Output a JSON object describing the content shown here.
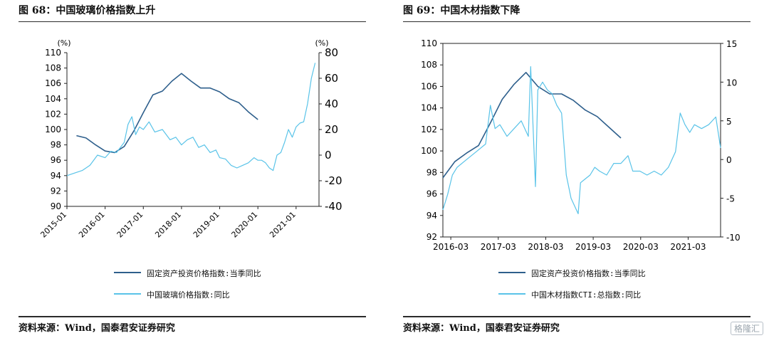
{
  "left": {
    "title": "图 68：中国玻璃价格指数上升",
    "source": "资料来源：Wind，国泰君安证券研究",
    "legend": [
      "固定资产投资价格指数:当季同比",
      "中国玻璃价格指数:同比"
    ]
  },
  "right": {
    "title": "图 69：中国木材指数下降",
    "source": "资料来源：Wind，国泰君安证券研究",
    "legend": [
      "固定资产投资价格指数:当季同比",
      "中国木材指数CTI:总指数:同比"
    ]
  },
  "watermark": "格隆汇",
  "colors": {
    "series1": "#2e5f8c",
    "series2": "#59c3e8"
  },
  "chart_data": [
    {
      "type": "line",
      "x_ticks": [
        "2015-01",
        "2016-01",
        "2017-01",
        "2018-01",
        "2019-01",
        "2020-01",
        "2021-01"
      ],
      "x_range": [
        2015.0,
        2021.6
      ],
      "left_axis": {
        "unit": "(%)",
        "ticks": [
          90,
          92,
          94,
          96,
          98,
          100,
          102,
          104,
          106,
          108,
          110
        ],
        "range": [
          90,
          110
        ]
      },
      "right_axis": {
        "unit": "(%)",
        "ticks": [
          -40,
          -20,
          0,
          20,
          40,
          60,
          80
        ],
        "range": [
          -40,
          80
        ]
      },
      "series": [
        {
          "name": "固定资产投资价格指数:当季同比",
          "axis": "left",
          "x": [
            2015.25,
            2015.5,
            2015.75,
            2016.0,
            2016.25,
            2016.5,
            2016.75,
            2017.0,
            2017.25,
            2017.5,
            2017.75,
            2018.0,
            2018.25,
            2018.5,
            2018.75,
            2019.0,
            2019.25,
            2019.5,
            2019.75,
            2020.0
          ],
          "y": [
            99.2,
            98.9,
            98.0,
            97.2,
            97.0,
            97.8,
            99.8,
            102.2,
            104.5,
            105.0,
            106.3,
            107.3,
            106.3,
            105.4,
            105.4,
            104.9,
            104.0,
            103.5,
            102.3,
            101.3
          ]
        },
        {
          "name": "中国玻璃价格指数:同比",
          "axis": "right",
          "x": [
            2015.0,
            2015.2,
            2015.4,
            2015.6,
            2015.8,
            2016.0,
            2016.15,
            2016.3,
            2016.5,
            2016.6,
            2016.7,
            2016.8,
            2016.9,
            2017.0,
            2017.15,
            2017.3,
            2017.5,
            2017.7,
            2017.85,
            2018.0,
            2018.15,
            2018.3,
            2018.45,
            2018.6,
            2018.75,
            2018.9,
            2019.0,
            2019.15,
            2019.3,
            2019.45,
            2019.6,
            2019.75,
            2019.9,
            2020.0,
            2020.1,
            2020.2,
            2020.3,
            2020.4,
            2020.5,
            2020.6,
            2020.7,
            2020.8,
            2020.9,
            2021.0,
            2021.1,
            2021.2,
            2021.3,
            2021.4,
            2021.5
          ],
          "y": [
            -16,
            -14,
            -12,
            -8,
            0,
            -2,
            3,
            2,
            10,
            24,
            30,
            16,
            22,
            20,
            26,
            18,
            20,
            12,
            14,
            8,
            12,
            14,
            6,
            8,
            2,
            4,
            -2,
            -3,
            -8,
            -10,
            -8,
            -6,
            -2,
            -4,
            -4,
            -6,
            -10,
            -12,
            0,
            2,
            10,
            20,
            14,
            22,
            25,
            26,
            40,
            60,
            72
          ]
        }
      ]
    },
    {
      "type": "line",
      "x_ticks": [
        "2016-03",
        "2017-03",
        "2018-03",
        "2019-03",
        "2020-03",
        "2021-03"
      ],
      "x_range": [
        2016.0,
        2021.85
      ],
      "left_axis": {
        "ticks": [
          92,
          94,
          96,
          98,
          100,
          102,
          104,
          106,
          108,
          110
        ],
        "range": [
          92,
          110
        ]
      },
      "right_axis": {
        "ticks": [
          -10,
          -5,
          0,
          5,
          10,
          15
        ],
        "range": [
          -10,
          15
        ]
      },
      "series": [
        {
          "name": "固定资产投资价格指数:当季同比",
          "axis": "left",
          "x": [
            2016.0,
            2016.25,
            2016.5,
            2016.75,
            2017.0,
            2017.25,
            2017.5,
            2017.75,
            2018.0,
            2018.25,
            2018.5,
            2018.75,
            2019.0,
            2019.25,
            2019.5,
            2019.75
          ],
          "y": [
            97.5,
            99.0,
            99.8,
            100.5,
            102.6,
            104.8,
            106.2,
            107.3,
            106.0,
            105.3,
            105.3,
            104.7,
            103.8,
            103.2,
            102.2,
            101.2
          ]
        },
        {
          "name": "中国木材指数CTI:总指数:同比",
          "axis": "right",
          "x": [
            2016.0,
            2016.1,
            2016.2,
            2016.3,
            2016.5,
            2016.7,
            2016.9,
            2017.0,
            2017.1,
            2017.2,
            2017.35,
            2017.5,
            2017.65,
            2017.8,
            2017.85,
            2017.95,
            2018.0,
            2018.1,
            2018.2,
            2018.3,
            2018.4,
            2018.5,
            2018.55,
            2018.6,
            2018.7,
            2018.85,
            2018.9,
            2019.0,
            2019.1,
            2019.2,
            2019.3,
            2019.45,
            2019.6,
            2019.75,
            2019.9,
            2020.0,
            2020.15,
            2020.3,
            2020.45,
            2020.6,
            2020.75,
            2020.9,
            2021.0,
            2021.1,
            2021.2,
            2021.3,
            2021.45,
            2021.6,
            2021.75,
            2021.85
          ],
          "y": [
            -6.5,
            -4.5,
            -2,
            -1,
            0,
            1,
            2,
            7,
            4,
            4.5,
            3,
            4,
            5,
            3,
            12,
            -3.5,
            9,
            10,
            9,
            8.5,
            7,
            6,
            2,
            -2,
            -5,
            -7,
            -3,
            -2.5,
            -2,
            -1,
            -1.5,
            -2,
            -0.5,
            -0.5,
            0.5,
            -1.5,
            -1.5,
            -2,
            -1.5,
            -2,
            -1,
            1,
            6,
            4.5,
            3.5,
            4.5,
            4,
            4.5,
            5.5,
            1.5
          ]
        }
      ]
    }
  ]
}
